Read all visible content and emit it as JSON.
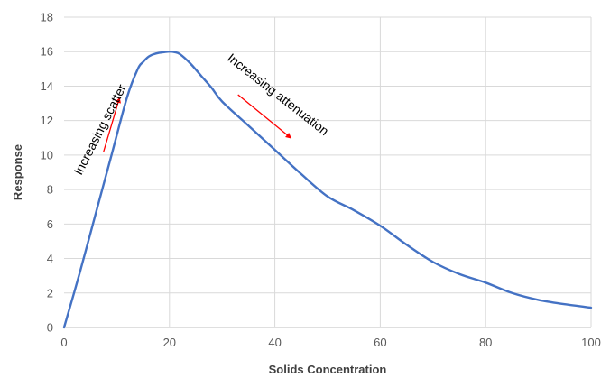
{
  "chart_data": {
    "type": "line",
    "title": "",
    "xlabel": "Solids Concentration",
    "ylabel": "Response",
    "xlim": [
      0,
      100
    ],
    "ylim": [
      0,
      18
    ],
    "x_ticks": [
      0,
      20,
      40,
      60,
      80,
      100
    ],
    "y_ticks": [
      0,
      2,
      4,
      6,
      8,
      10,
      12,
      14,
      16,
      18
    ],
    "grid": true,
    "legend": "none",
    "series": [
      {
        "color": "#4472c4",
        "x": [
          0,
          3,
          6,
          9,
          12,
          14,
          15,
          16,
          17,
          18,
          19,
          20,
          21,
          22,
          24,
          26,
          28,
          30,
          35,
          40,
          45,
          50,
          55,
          60,
          65,
          70,
          75,
          80,
          85,
          90,
          95,
          100
        ],
        "y": [
          0,
          3.2,
          6.6,
          10.0,
          13.4,
          15.0,
          15.4,
          15.7,
          15.85,
          15.93,
          15.97,
          16.0,
          15.97,
          15.85,
          15.3,
          14.6,
          13.9,
          13.1,
          11.7,
          10.3,
          8.9,
          7.6,
          6.8,
          5.9,
          4.8,
          3.8,
          3.1,
          2.6,
          2.0,
          1.6,
          1.35,
          1.15
        ]
      }
    ],
    "annotations": [
      {
        "text": "Increasing scatter",
        "arrow_color": "#ff0000",
        "arrow_from": [
          7.5,
          10.2
        ],
        "arrow_to": [
          10.5,
          13.3
        ]
      },
      {
        "text": "Increasing attenuation",
        "arrow_color": "#ff0000",
        "arrow_from": [
          33,
          13.5
        ],
        "arrow_to": [
          43,
          11.0
        ]
      }
    ]
  }
}
